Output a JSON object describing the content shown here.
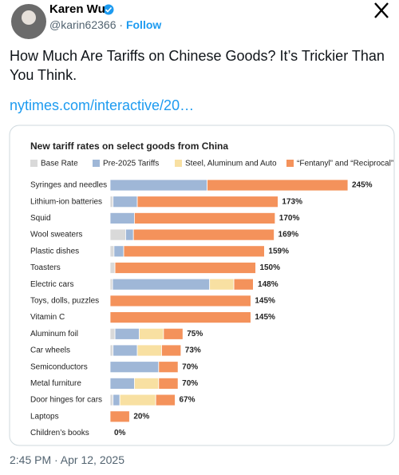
{
  "tweet": {
    "author": "Karen Wu",
    "handle": "@karin62366",
    "separator": "·",
    "follow": "Follow",
    "text": "How Much Are Tariffs on Chinese Goods? It’s Trickier Than You Think.",
    "link": "nytimes.com/interactive/20…",
    "timestamp": "2:45 PM · Apr 12, 2025"
  },
  "chart_data": {
    "type": "stacked-bar-horizontal",
    "title": "New tariff rates on select goods from China",
    "categories": [
      "Syringes and needles",
      "Lithium-ion batteries",
      "Squid",
      "Wool sweaters",
      "Plastic dishes",
      "Toasters",
      "Electric cars",
      "Toys, dolls, puzzles",
      "Vitamin C",
      "Aluminum foil",
      "Car wheels",
      "Semiconductors",
      "Metal furniture",
      "Door hinges for cars",
      "Laptops",
      "Children’s books"
    ],
    "series": [
      {
        "name": "Base Rate",
        "color": "#d9d9d9",
        "values": [
          0,
          3,
          0,
          16,
          4,
          5,
          2.5,
          0,
          0,
          5,
          3,
          0,
          0,
          3,
          0,
          0
        ]
      },
      {
        "name": "Pre-2025 Tariffs",
        "color": "#9fb7d7",
        "values": [
          100,
          25,
          25,
          8,
          10,
          0,
          100,
          0,
          0,
          25,
          25,
          50,
          25,
          7,
          0,
          0
        ]
      },
      {
        "name": "Steel, Aluminum and Auto",
        "color": "#f8e0a2",
        "values": [
          0,
          0,
          0,
          0,
          0,
          0,
          25,
          0,
          0,
          25,
          25,
          0,
          25,
          37,
          0,
          0
        ]
      },
      {
        "name": "“Fentanyl” and “Reciprocal”",
        "color": "#f4925b",
        "values": [
          145,
          145,
          145,
          145,
          145,
          145,
          20,
          145,
          145,
          20,
          20,
          20,
          20,
          20,
          20,
          0
        ]
      }
    ],
    "totals": [
      245,
      173,
      170,
      169,
      159,
      150,
      148,
      145,
      145,
      75,
      73,
      70,
      70,
      67,
      20,
      0
    ],
    "total_labels": [
      "245%",
      "173%",
      "170%",
      "169%",
      "159%",
      "150%",
      "148%",
      "145%",
      "145%",
      "75%",
      "73%",
      "70%",
      "70%",
      "67%",
      "20%",
      "0%"
    ],
    "xlim": [
      0,
      245
    ]
  }
}
